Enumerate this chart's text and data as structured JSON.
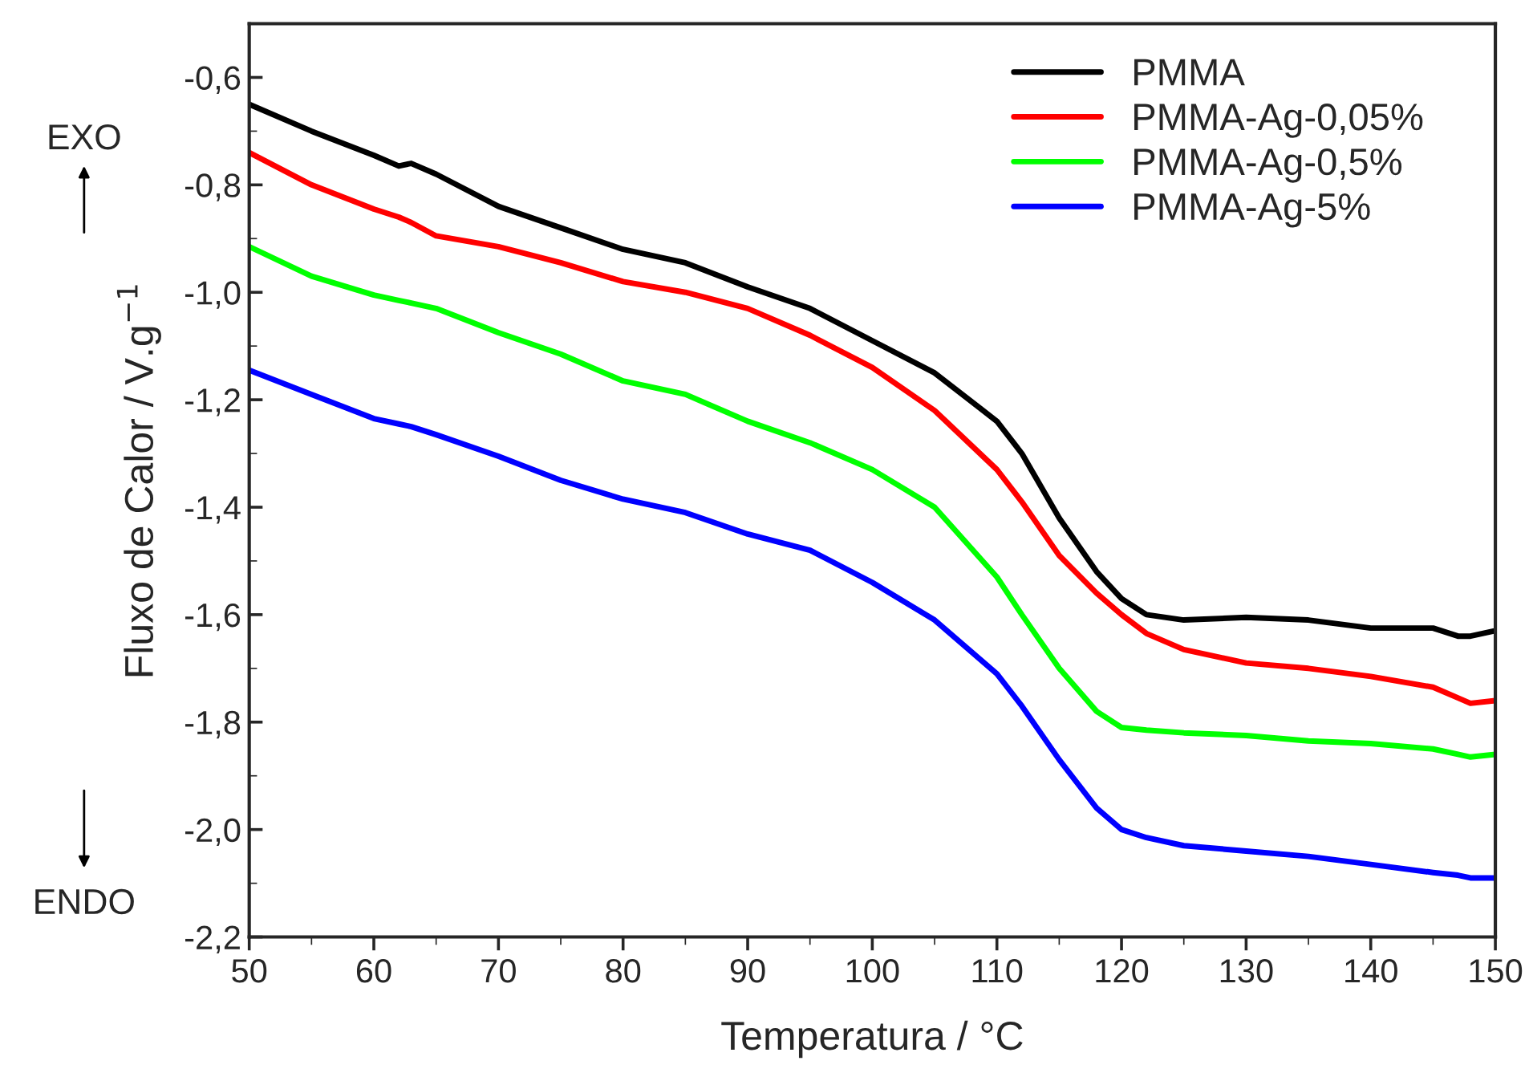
{
  "chart_data": {
    "type": "line",
    "xlabel": "Temperatura / °C",
    "ylabel": "Fluxo de Calor / V.g$^{−1}$",
    "annotations": [
      "EXO",
      "ENDO"
    ],
    "x": [
      50,
      55,
      60,
      62,
      63,
      65,
      70,
      75,
      80,
      85,
      90,
      95,
      100,
      105,
      110,
      112,
      115,
      118,
      120,
      122,
      125,
      130,
      135,
      140,
      145,
      147,
      148,
      150
    ],
    "series": [
      {
        "name": "PMMA",
        "color": "#000000",
        "values": [
          -0.65,
          -0.7,
          -0.745,
          -0.765,
          -0.76,
          -0.78,
          -0.84,
          -0.88,
          -0.92,
          -0.945,
          -0.99,
          -1.03,
          -1.09,
          -1.15,
          -1.24,
          -1.3,
          -1.42,
          -1.52,
          -1.57,
          -1.6,
          -1.61,
          -1.605,
          -1.61,
          -1.625,
          -1.625,
          -1.64,
          -1.64,
          -1.63
        ]
      },
      {
        "name": "PMMA-Ag-0,05%",
        "color": "#ff0000",
        "values": [
          -0.74,
          -0.8,
          -0.845,
          -0.86,
          -0.87,
          -0.895,
          -0.915,
          -0.945,
          -0.98,
          -1.0,
          -1.03,
          -1.08,
          -1.14,
          -1.22,
          -1.33,
          -1.39,
          -1.49,
          -1.56,
          -1.6,
          -1.635,
          -1.665,
          -1.69,
          -1.7,
          -1.715,
          -1.735,
          -1.755,
          -1.765,
          -1.76
        ]
      },
      {
        "name": "PMMA-Ag-0,5%",
        "color": "#00ff00",
        "values": [
          -0.915,
          -0.97,
          -1.005,
          -1.015,
          -1.02,
          -1.03,
          -1.075,
          -1.115,
          -1.165,
          -1.19,
          -1.24,
          -1.28,
          -1.33,
          -1.4,
          -1.53,
          -1.6,
          -1.7,
          -1.78,
          -1.81,
          -1.815,
          -1.82,
          -1.825,
          -1.835,
          -1.84,
          -1.85,
          -1.86,
          -1.865,
          -1.86
        ]
      },
      {
        "name": "PMMA-Ag-5%",
        "color": "#0000ff",
        "values": [
          -1.145,
          -1.19,
          -1.235,
          -1.245,
          -1.25,
          -1.265,
          -1.305,
          -1.35,
          -1.385,
          -1.41,
          -1.45,
          -1.48,
          -1.54,
          -1.61,
          -1.71,
          -1.77,
          -1.87,
          -1.96,
          -2.0,
          -2.015,
          -2.03,
          -2.04,
          -2.05,
          -2.065,
          -2.08,
          -2.085,
          -2.09,
          -2.09
        ]
      }
    ],
    "xlim": [
      50,
      150
    ],
    "xticks": [
      50,
      60,
      70,
      80,
      90,
      100,
      110,
      120,
      130,
      140,
      150
    ],
    "ylim": [
      -2.2,
      -0.5
    ],
    "yticks": [
      {
        "value": -2.2,
        "label": "-2,2"
      },
      {
        "value": -2.0,
        "label": "-2,0"
      },
      {
        "value": -1.8,
        "label": "-1,8"
      },
      {
        "value": -1.6,
        "label": "-1,6"
      },
      {
        "value": -1.4,
        "label": "-1,4"
      },
      {
        "value": -1.2,
        "label": "-1,2"
      },
      {
        "value": -1.0,
        "label": "-1,0"
      },
      {
        "value": -0.8,
        "label": "-0,8"
      },
      {
        "value": -0.6,
        "label": "-0,6"
      }
    ],
    "legend": "top right",
    "grid": false
  }
}
